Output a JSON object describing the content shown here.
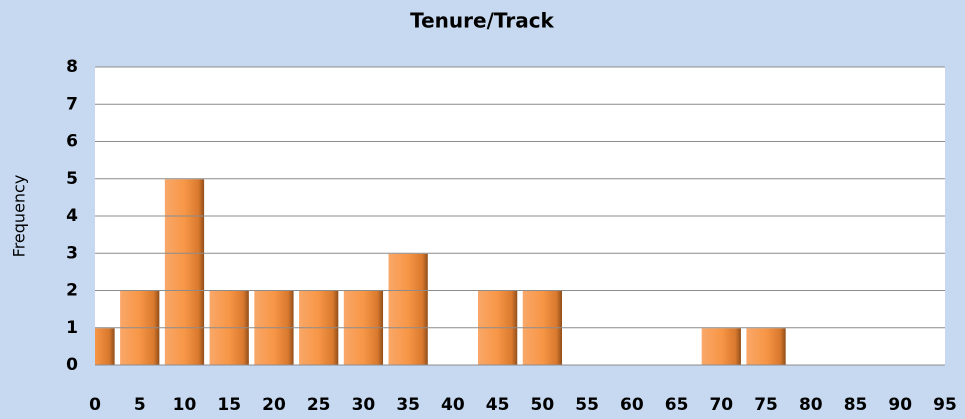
{
  "chart_data": {
    "type": "histogram",
    "title": "Tenure/Track",
    "y_label": "Frequency",
    "x": [
      0,
      5,
      10,
      15,
      20,
      25,
      30,
      35,
      40,
      45,
      50,
      55,
      60,
      65,
      70,
      75,
      80,
      85,
      90,
      95
    ],
    "values": [
      1,
      2,
      5,
      2,
      2,
      2,
      2,
      3,
      0,
      2,
      2,
      0,
      0,
      0,
      1,
      1,
      0,
      0,
      0,
      0
    ],
    "color": "#f79646",
    "xlim": [
      0,
      95
    ],
    "ylim": [
      0,
      8
    ],
    "yticks": [
      0,
      1,
      2,
      3,
      4,
      5,
      6,
      7,
      8
    ],
    "grid": true
  }
}
